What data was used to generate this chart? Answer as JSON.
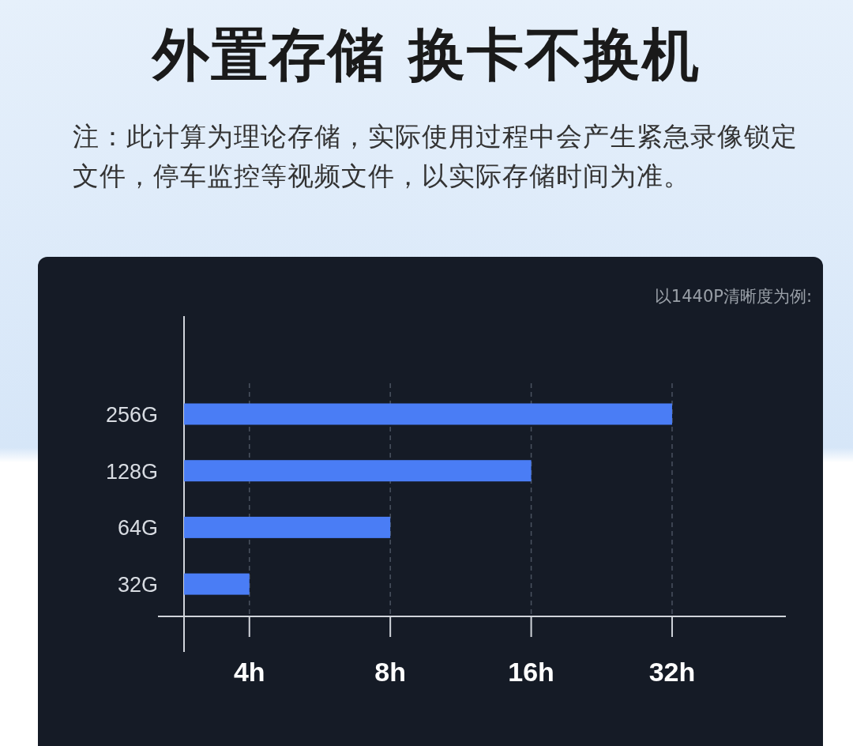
{
  "chart_data": {
    "type": "bar",
    "orientation": "horizontal",
    "title": "外置存储 换卡不换机",
    "subtitle": "注：此计算为理论存储，实际使用过程中会产生紧急录像锁定文件，停车监控等视频文件，以实际存储时间为准。",
    "annotations": [
      "以1440P清晰度为例:"
    ],
    "categories": [
      "256G",
      "128G",
      "64G",
      "32G"
    ],
    "values": [
      32,
      16,
      8,
      4
    ],
    "color": "#4a7df5",
    "log": "x",
    "xlim": [
      2.9,
      56
    ],
    "xticks": [
      {
        "value": 4,
        "label": "4h"
      },
      {
        "value": 8,
        "label": "8h"
      },
      {
        "value": 16,
        "label": "16h"
      },
      {
        "value": 32,
        "label": "32h"
      }
    ],
    "grid": "x"
  }
}
